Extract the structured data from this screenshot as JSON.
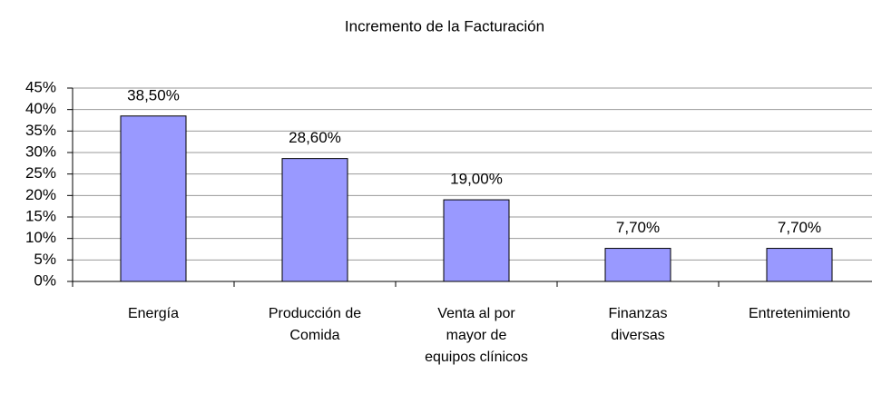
{
  "chart_data": {
    "type": "bar",
    "title": "Incremento de la Facturación",
    "categories": [
      "Energía",
      "Producción de Comida",
      "Venta al por mayor de equipos clínicos",
      "Finanzas diversas",
      "Entretenimiento"
    ],
    "values": [
      38.5,
      28.6,
      19.0,
      7.7,
      7.7
    ],
    "value_labels": [
      "38,50%",
      "28,60%",
      "19,00%",
      "7,70%",
      "7,70%"
    ],
    "color": "#9999ff",
    "ylim": [
      0,
      45
    ],
    "yticks": [
      {
        "value": 0,
        "label": "0%"
      },
      {
        "value": 5,
        "label": "5%"
      },
      {
        "value": 10,
        "label": "10%"
      },
      {
        "value": 15,
        "label": "15%"
      },
      {
        "value": 20,
        "label": "20%"
      },
      {
        "value": 25,
        "label": "25%"
      },
      {
        "value": 30,
        "label": "30%"
      },
      {
        "value": 35,
        "label": "35%"
      },
      {
        "value": 40,
        "label": "40%"
      },
      {
        "value": 45,
        "label": "45%"
      }
    ],
    "grid": true
  }
}
